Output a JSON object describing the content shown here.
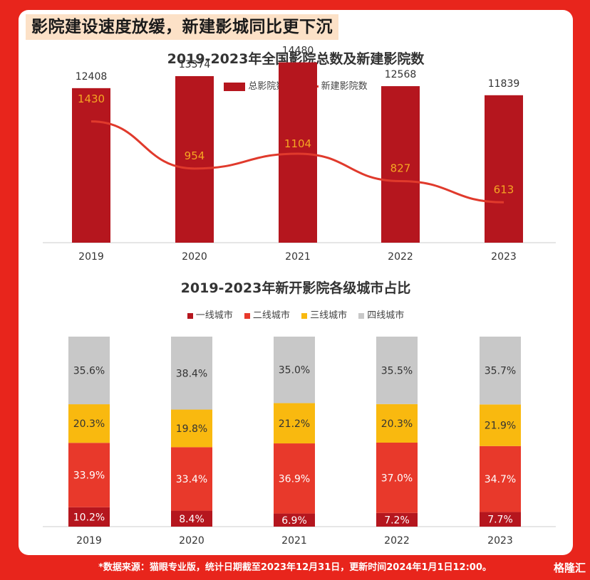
{
  "headline": "影院建设速度放缓，新建影城同比更下沉",
  "colors": {
    "background": "#e8251c",
    "dark_red": "#b5161e",
    "line_red": "#e03a2c",
    "orange_label": "#f5a623",
    "tier1": "#b5161e",
    "tier2": "#e8392b",
    "tier3": "#f9b90f",
    "tier4": "#c8c8c8"
  },
  "footer": {
    "source": "*数据来源：猫眼专业版，统计日期截至2023年12月31日，更新时间2024年1月1日12:00。",
    "logo": "格隆汇"
  },
  "chart_data": [
    {
      "type": "bar",
      "title": "2019-2023年全国影院总数及新建影院数",
      "categories": [
        "2019",
        "2020",
        "2021",
        "2022",
        "2023"
      ],
      "series": [
        {
          "name": "总影院数",
          "kind": "bar",
          "values": [
            12408,
            13374,
            14480,
            12568,
            11839
          ]
        },
        {
          "name": "新建影院数",
          "kind": "line",
          "values": [
            1430,
            954,
            1104,
            827,
            613
          ]
        }
      ],
      "legend_position": "top",
      "grid": false
    },
    {
      "type": "bar",
      "stacked": true,
      "title": "2019-2023年新开影院各级城市占比",
      "categories": [
        "2019",
        "2020",
        "2021",
        "2022",
        "2023"
      ],
      "series": [
        {
          "name": "一线城市",
          "values": [
            10.2,
            8.4,
            6.9,
            7.2,
            7.7
          ]
        },
        {
          "name": "二线城市",
          "values": [
            33.9,
            33.4,
            36.9,
            37.0,
            34.7
          ]
        },
        {
          "name": "三线城市",
          "values": [
            20.3,
            19.8,
            21.2,
            20.3,
            21.9
          ]
        },
        {
          "name": "四线城市",
          "values": [
            35.6,
            38.4,
            35.0,
            35.5,
            35.7
          ]
        }
      ],
      "unit": "%",
      "legend_position": "top",
      "grid": false
    }
  ]
}
